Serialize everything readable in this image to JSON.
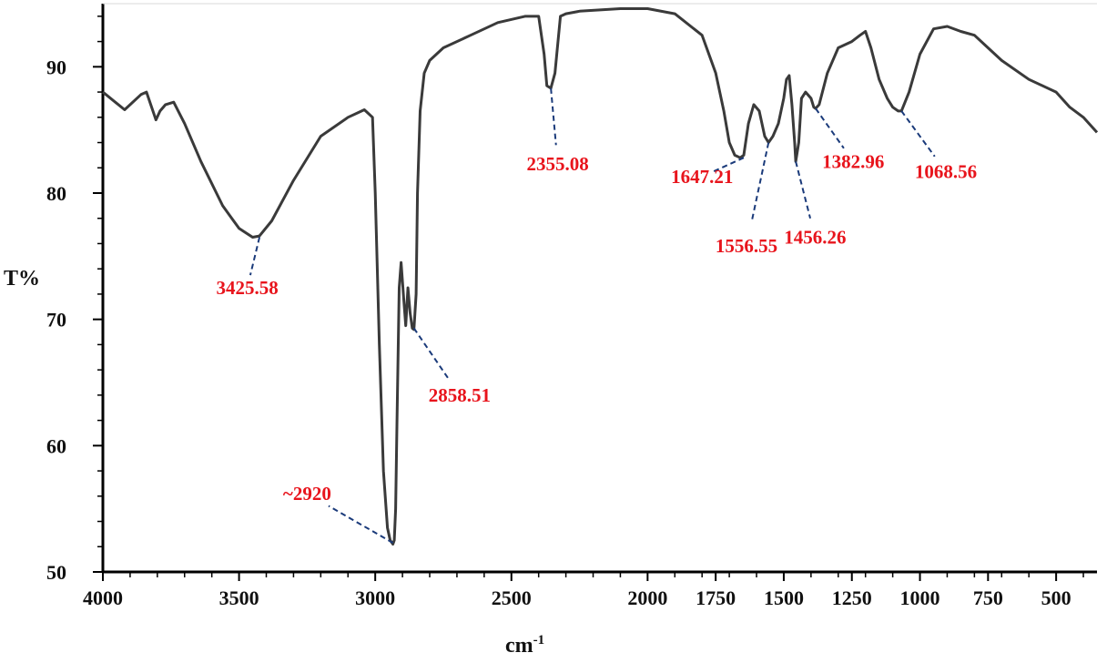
{
  "chart_data": {
    "type": "line",
    "title": "",
    "xlabel": "cm",
    "xlabel_sup": "-1",
    "ylabel": "T%",
    "xlim": [
      4000,
      350
    ],
    "ylim": [
      50,
      95
    ],
    "x_ticks": [
      4000,
      3500,
      3000,
      2500,
      2000,
      1750,
      1500,
      1250,
      1000,
      750,
      500
    ],
    "x_tick_labels": [
      "4000",
      "3500",
      "3000",
      "2500",
      "2000",
      "1750",
      "1500",
      "1250",
      "1000",
      "750",
      "500"
    ],
    "y_ticks": [
      50,
      60,
      70,
      80,
      90
    ],
    "y_tick_labels": [
      "50",
      "60",
      "70",
      "80",
      "90"
    ],
    "grid": false,
    "series": [
      {
        "color": "#3a3a3a",
        "x": [
          4000,
          3920,
          3860,
          3840,
          3805,
          3790,
          3770,
          3740,
          3700,
          3640,
          3560,
          3500,
          3450,
          3425,
          3380,
          3300,
          3200,
          3100,
          3040,
          3010,
          3000,
          2985,
          2970,
          2955,
          2945,
          2935,
          2930,
          2925,
          2920,
          2912,
          2905,
          2895,
          2888,
          2880,
          2872,
          2864,
          2858,
          2850,
          2845,
          2835,
          2820,
          2800,
          2750,
          2650,
          2550,
          2450,
          2400,
          2380,
          2370,
          2355,
          2340,
          2320,
          2300,
          2250,
          2100,
          2000,
          1900,
          1800,
          1750,
          1720,
          1700,
          1680,
          1660,
          1647,
          1630,
          1610,
          1590,
          1570,
          1556,
          1540,
          1520,
          1500,
          1490,
          1480,
          1470,
          1460,
          1456,
          1445,
          1435,
          1420,
          1400,
          1390,
          1383,
          1370,
          1340,
          1300,
          1250,
          1220,
          1200,
          1180,
          1150,
          1120,
          1100,
          1080,
          1068,
          1040,
          1000,
          950,
          900,
          850,
          800,
          750,
          700,
          600,
          500,
          450,
          400,
          350
        ],
        "y": [
          88.0,
          86.6,
          87.8,
          88.0,
          85.8,
          86.5,
          87.0,
          87.2,
          85.5,
          82.5,
          79.0,
          77.2,
          76.5,
          76.6,
          77.8,
          81.0,
          84.5,
          86.0,
          86.6,
          86.0,
          80.0,
          68.0,
          58.0,
          53.5,
          52.5,
          52.2,
          52.5,
          55.0,
          62.0,
          72.5,
          74.5,
          71.5,
          69.5,
          72.5,
          70.5,
          69.3,
          69.2,
          72.0,
          80.0,
          86.5,
          89.5,
          90.5,
          91.5,
          92.5,
          93.5,
          94.0,
          94.0,
          91.0,
          88.5,
          88.3,
          89.5,
          94.0,
          94.2,
          94.4,
          94.6,
          94.6,
          94.2,
          92.5,
          89.5,
          86.5,
          84.0,
          83.0,
          82.8,
          83.0,
          85.5,
          87.0,
          86.5,
          84.5,
          84.0,
          84.5,
          85.5,
          87.5,
          89.0,
          89.3,
          87.0,
          84.0,
          82.5,
          84.0,
          87.5,
          88.0,
          87.5,
          86.8,
          86.7,
          87.0,
          89.5,
          91.5,
          92.0,
          92.5,
          92.8,
          91.5,
          89.0,
          87.5,
          86.8,
          86.5,
          86.5,
          88.0,
          91.0,
          93.0,
          93.2,
          92.8,
          92.5,
          91.5,
          90.5,
          89.0,
          88.0,
          86.8,
          86.0,
          84.8
        ]
      }
    ],
    "annotations": [
      {
        "text": "3425.58",
        "x": 3425,
        "y": 76.5,
        "tx": 3470,
        "ty": 72.5
      },
      {
        "text": "~2920",
        "x": 2935,
        "y": 52.3,
        "tx": 3250,
        "ty": 56.2
      },
      {
        "text": "2858.51",
        "x": 2858,
        "y": 69.3,
        "tx": 2690,
        "ty": 64.0
      },
      {
        "text": "2355.08",
        "x": 2355,
        "y": 88.3,
        "tx": 2330,
        "ty": 82.3
      },
      {
        "text": "1647.21",
        "x": 1647,
        "y": 82.8,
        "tx": 1800,
        "ty": 81.3
      },
      {
        "text": "1556.55",
        "x": 1556,
        "y": 84.0,
        "tx": 1637,
        "ty": 75.8
      },
      {
        "text": "1456.26",
        "x": 1456,
        "y": 82.5,
        "tx": 1385,
        "ty": 76.5
      },
      {
        "text": "1382.96",
        "x": 1383,
        "y": 86.7,
        "tx": 1245,
        "ty": 82.5
      },
      {
        "text": "1068.56",
        "x": 1068,
        "y": 86.5,
        "tx": 905,
        "ty": 81.7
      }
    ],
    "peak_label_color": "#e8141c",
    "leader_color": "#1a3a7a"
  }
}
